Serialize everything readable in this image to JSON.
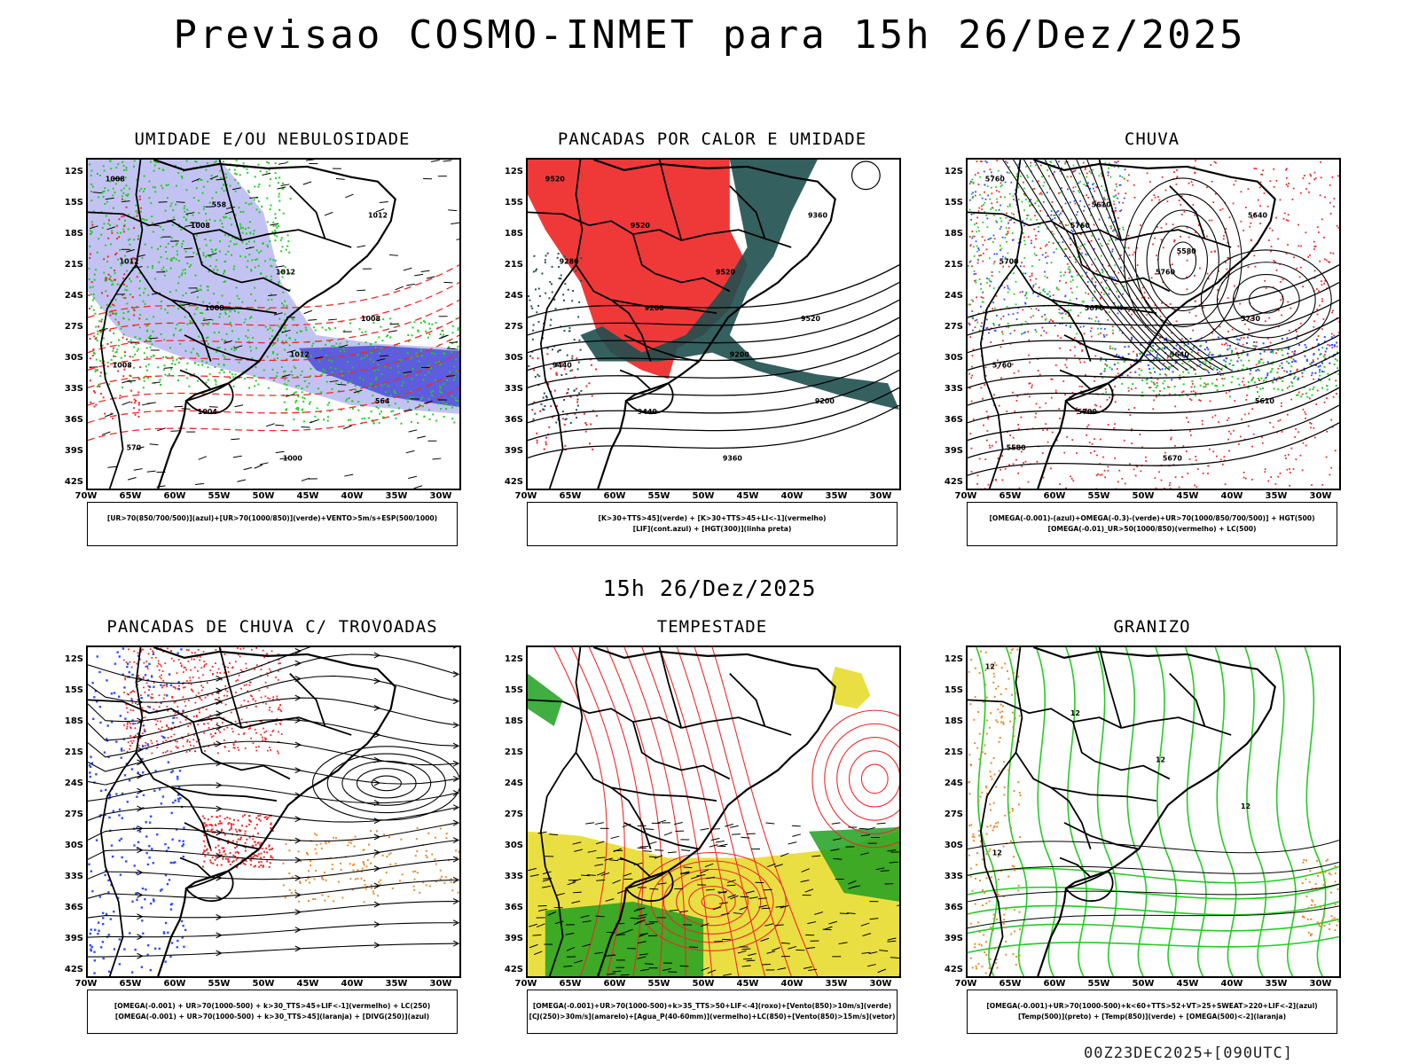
{
  "title": "Previsao COSMO-INMET  para 15h 26/Dez/2025",
  "mid_date": "15h 26/Dez/2025",
  "footer": "00Z23DEC2025+[090UTC]",
  "lat_ticks": [
    "12S",
    "15S",
    "18S",
    "21S",
    "24S",
    "27S",
    "30S",
    "33S",
    "36S",
    "39S",
    "42S"
  ],
  "lon_ticks": [
    "70W",
    "65W",
    "60W",
    "55W",
    "50W",
    "45W",
    "40W",
    "35W",
    "30W"
  ],
  "colors": {
    "humidity_blue": "#b4b4f0",
    "humidity_dark_blue": "#4b4bd8",
    "green": "#22cc22",
    "red": "#ee2828",
    "dark_teal": "#1f4f4f",
    "yellow": "#e8dc32",
    "orange": "#e88a2a",
    "blue_dots": "#2a4bff"
  },
  "panels": [
    {
      "title": "UMIDADE E/OU NEBULOSIDADE",
      "legend": [
        "[UR>70(850/700/500)](azul)+[UR>70(1000/850)](verde)+VENTO>5m/s+ESP(500/1000)"
      ],
      "contour_labels": [
        "1008",
        "1008",
        "1012",
        "1008",
        "1008",
        "1004",
        "1000",
        "1012",
        "1012",
        "1008",
        "1012",
        "564",
        "570",
        "558"
      ]
    },
    {
      "title": "PANCADAS POR CALOR E UMIDADE",
      "legend": [
        "[K>30+TTS>45](verde) + [K>30+TTS>45+LI<-1](vermelho)",
        "[LIF](cont.azul) + [HGT(300)](linha preta)"
      ],
      "contour_labels": [
        "9520",
        "9520",
        "9520",
        "9520",
        "9440",
        "9440",
        "9360",
        "9360",
        "9280",
        "9280",
        "9200",
        "9200"
      ]
    },
    {
      "title": "CHUVA",
      "legend": [
        "[OMEGA(-0.001)-(azul)+OMEGA(-0.3)-(verde)+UR>70(1000/850/700/500)] + HGT(500)",
        "[OMEGA(-0.01)_UR>50(1000/850)(vermelho) + LC(500)"
      ],
      "contour_labels": [
        "5760",
        "5760",
        "5760",
        "5730",
        "5760",
        "5700",
        "5670",
        "5640",
        "5700",
        "5670",
        "5640",
        "5610",
        "5580",
        "5610",
        "5580"
      ]
    },
    {
      "title": "PANCADAS DE CHUVA C/ TROVOADAS",
      "legend": [
        "[OMEGA(-0.001) + UR>70(1000-500) + k>30_TTS>45+LIF<-1](vermelho) + LC(250)",
        "[OMEGA(-0.001) + UR>70(1000-500) + k>30_TTS>45](laranja) + [DIVG(250)](azul)"
      ],
      "contour_labels": []
    },
    {
      "title": "TEMPESTADE",
      "legend": [
        "[OMEGA(-0.001)+UR>70(1000-500)+k>35_TTS>50+LIF<-4](roxo)+[Vento(850)>10m/s](verde)",
        "[CJ(250)>30m/s](amarelo)+[Agua_P(40-60mm)](vermelho)+LC(850)+[Vento(850)>15m/s](vetor)"
      ],
      "contour_labels": []
    },
    {
      "title": "GRANIZO",
      "legend": [
        "[OMEGA(-0.001)+UR>70(1000-500)+k<60+TTS>52+VT>25+SWEAT>220+LIF<-2](azul)",
        "[Temp(500)](preto) + [Temp(850)](verde) + [OMEGA(500)<-2](laranja)"
      ],
      "contour_labels": [
        "12",
        "12",
        "12",
        "12",
        "12"
      ]
    }
  ]
}
